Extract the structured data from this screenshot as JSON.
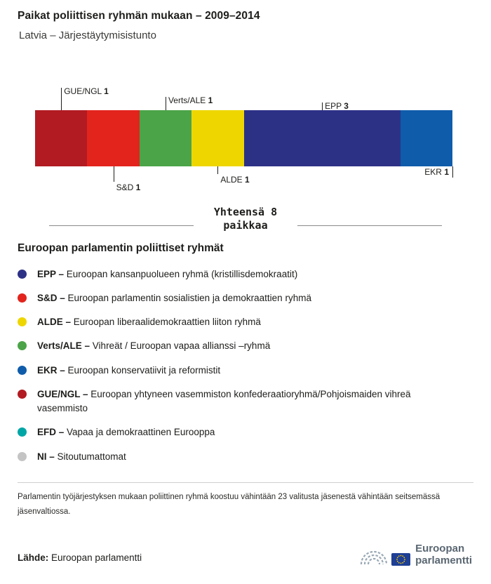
{
  "header": {
    "title": "Paikat poliittisen ryhmän mukaan – 2009–2014",
    "subtitle": "Latvia – Järjestäytymisistunto"
  },
  "chart_data": {
    "type": "bar",
    "variant": "horizontal-stacked-seat-bar",
    "title": "Paikat poliittisen ryhmän mukaan – 2009–2014",
    "subtitle": "Latvia – Järjestäytymisistunto",
    "total_seats": 8,
    "total_label": "Yhteensä 8 paikkaa",
    "legend_position": "below",
    "segments": [
      {
        "group": "GUE/NGL",
        "seats": 1,
        "color": "#b21b22",
        "label_position": "above",
        "anchor": "center"
      },
      {
        "group": "S&D",
        "seats": 1,
        "color": "#e2241d",
        "label_position": "below",
        "anchor": "center"
      },
      {
        "group": "Verts/ALE",
        "seats": 1,
        "color": "#4ba448",
        "label_position": "above",
        "anchor": "center"
      },
      {
        "group": "ALDE",
        "seats": 1,
        "color": "#eed600",
        "label_position": "below",
        "anchor": "center"
      },
      {
        "group": "EPP",
        "seats": 3,
        "color": "#2d3186",
        "label_position": "above",
        "anchor": "center"
      },
      {
        "group": "EKR",
        "seats": 1,
        "color": "#0f5cab",
        "label_position": "below",
        "anchor": "end"
      }
    ]
  },
  "legend": {
    "heading": "Euroopan parlamentin poliittiset ryhmät",
    "items": [
      {
        "abbr": "EPP –",
        "description": "Euroopan kansanpuolueen ryhmä (kristillisdemokraatit)",
        "color": "#2d3186"
      },
      {
        "abbr": "S&D –",
        "description": "Euroopan parlamentin sosialistien ja demokraattien ryhmä",
        "color": "#e2241d"
      },
      {
        "abbr": "ALDE –",
        "description": "Euroopan liberaalidemokraattien liiton ryhmä",
        "color": "#eed600"
      },
      {
        "abbr": "Verts/ALE –",
        "description": "Vihreät / Euroopan vapaa allianssi –ryhmä",
        "color": "#4ba448"
      },
      {
        "abbr": "EKR –",
        "description": "Euroopan konservatiivit ja reformistit",
        "color": "#0f5cab"
      },
      {
        "abbr": "GUE/NGL –",
        "description": "Euroopan yhtyneen vasemmiston konfederaatioryhmä/Pohjoismaiden vihreä vasemmisto",
        "color": "#b21b22"
      },
      {
        "abbr": "EFD –",
        "description": "Vapaa ja demokraattinen Eurooppa",
        "color": "#00a6a6"
      },
      {
        "abbr": "NI –",
        "description": "Sitoutumattomat",
        "color": "#c4c4c4"
      }
    ]
  },
  "footnote": "Parlamentin työjärjestyksen mukaan poliittinen ryhmä koostuu vähintään 23 valitusta jäsenestä vähintään seitsemässä jäsenvaltiossa.",
  "source": {
    "label": "Lähde:",
    "value": "Euroopan parlamentti"
  },
  "logo": {
    "line1": "Euroopan",
    "line2": "parlamentti"
  }
}
